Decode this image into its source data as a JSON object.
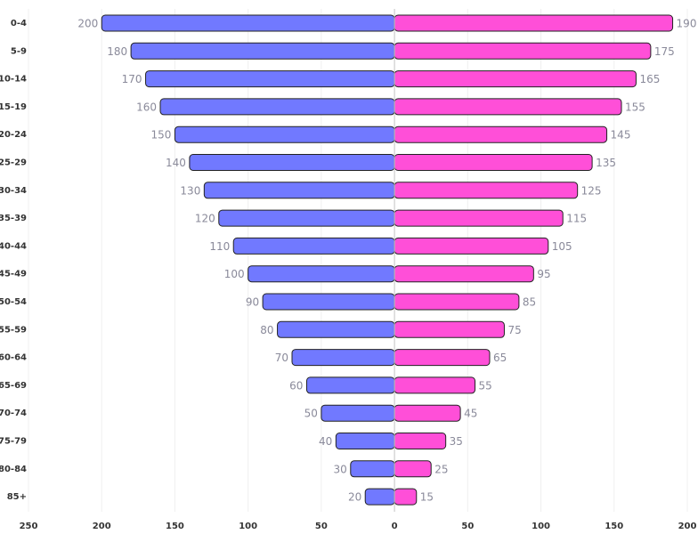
{
  "chart_data": {
    "type": "pyramid",
    "categories": [
      "0-4",
      "5-9",
      "10-14",
      "15-19",
      "20-24",
      "25-29",
      "30-34",
      "35-39",
      "40-44",
      "45-49",
      "50-54",
      "55-59",
      "60-64",
      "65-69",
      "70-74",
      "75-79",
      "80-84",
      "85+"
    ],
    "series": [
      {
        "color": "#7179ff",
        "values": [
          -200,
          -180,
          -170,
          -160,
          -150,
          -140,
          -130,
          -120,
          -110,
          -100,
          -90,
          -80,
          -70,
          -60,
          -50,
          -40,
          -30,
          -20
        ],
        "value_labels": [
          "200",
          "180",
          "170",
          "160",
          "150",
          "140",
          "130",
          "120",
          "110",
          "100",
          "90",
          "80",
          "70",
          "60",
          "50",
          "40",
          "30",
          "20"
        ]
      },
      {
        "color": "#ff4fd8",
        "values": [
          190,
          175,
          165,
          155,
          145,
          135,
          125,
          115,
          105,
          95,
          85,
          75,
          65,
          55,
          45,
          35,
          25,
          15
        ]
      }
    ],
    "xlim": [
      -250,
      200
    ],
    "xticks": [
      {
        "value": -250,
        "label": "250"
      },
      {
        "value": -200,
        "label": "200"
      },
      {
        "value": -150,
        "label": "150"
      },
      {
        "value": -100,
        "label": "100"
      },
      {
        "value": -50,
        "label": "50"
      },
      0,
      50,
      100,
      150,
      200
    ],
    "grid": true
  }
}
